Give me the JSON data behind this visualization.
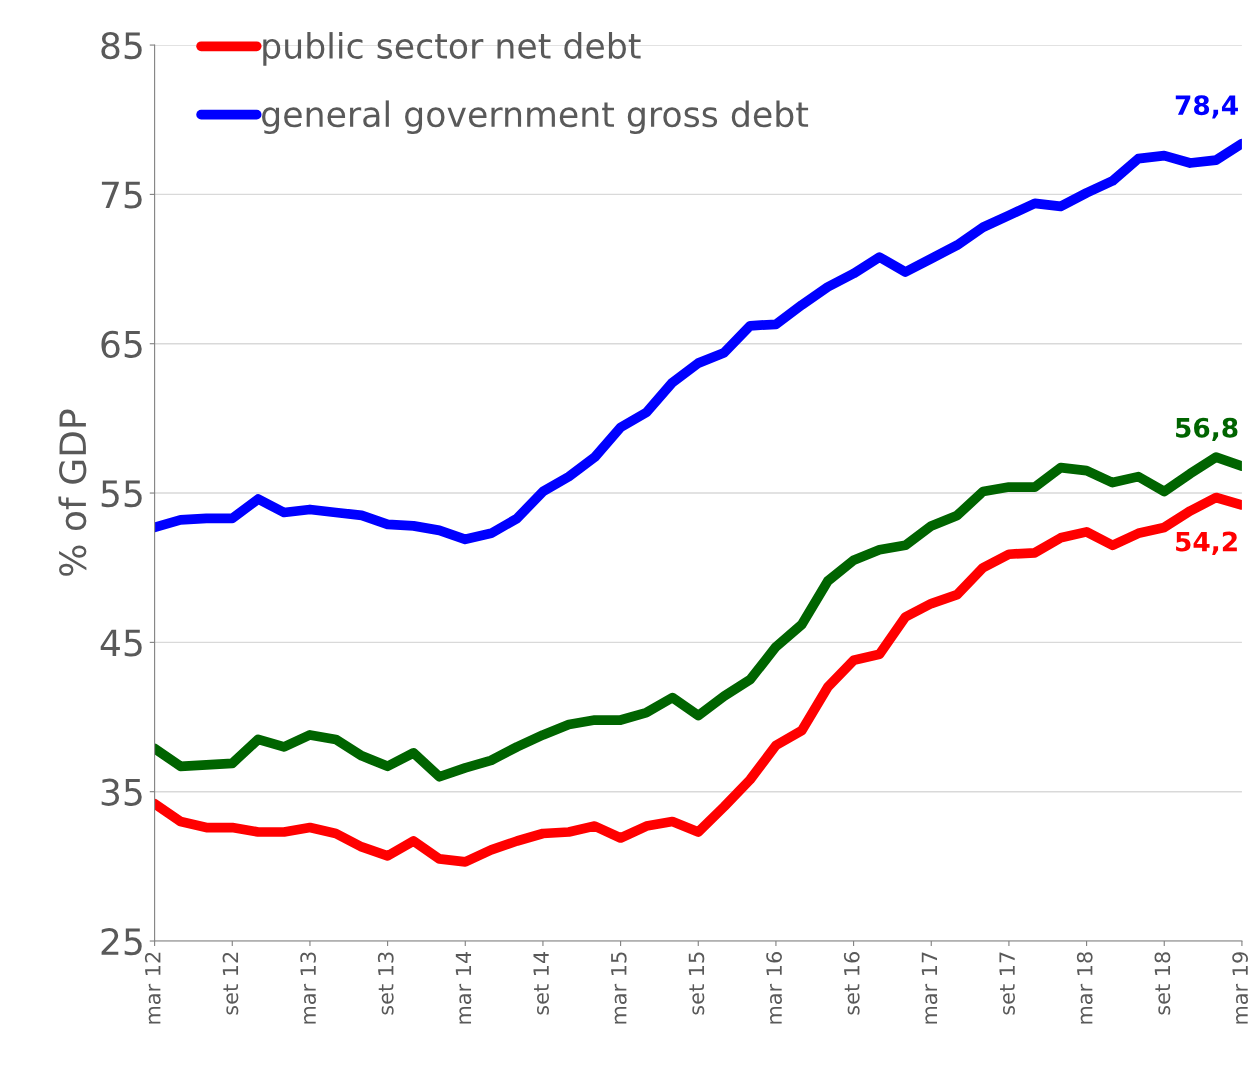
{
  "chart_data": {
    "type": "line",
    "ylabel": "% of GDP",
    "categories": [
      "mar 12",
      null,
      null,
      "set 12",
      null,
      null,
      "mar 13",
      null,
      null,
      "set 13",
      null,
      null,
      "mar 14",
      null,
      null,
      "set 14",
      null,
      null,
      "mar 15",
      null,
      null,
      "set 15",
      null,
      null,
      "mar 16",
      null,
      null,
      "set 16",
      null,
      null,
      "mar 17",
      null,
      null,
      "set 17",
      null,
      null,
      "mar 18",
      null,
      null,
      "set 18",
      null,
      null,
      "mar 19"
    ],
    "ylim": [
      25,
      85
    ],
    "yticks": [
      25,
      35,
      45,
      55,
      65,
      75,
      85
    ],
    "grid": "y",
    "legend": "top left",
    "marker": "none",
    "line_style": "solid",
    "series": [
      {
        "name": "public sector net debt",
        "color": "#ff0000",
        "values": [
          34.2,
          33.0,
          32.6,
          32.6,
          32.3,
          32.3,
          32.6,
          32.2,
          31.3,
          30.7,
          31.7,
          30.5,
          30.3,
          31.1,
          31.7,
          32.2,
          32.3,
          32.7,
          31.9,
          32.7,
          33.0,
          32.3,
          34.0,
          35.8,
          38.1,
          39.1,
          42.0,
          43.8,
          44.2,
          46.7,
          47.6,
          48.2,
          50.0,
          50.9,
          51.0,
          52.0,
          52.4,
          51.5,
          52.3,
          52.7,
          53.8,
          54.7,
          54.2
        ],
        "value_labels": [
          null,
          null,
          null,
          null,
          null,
          null,
          null,
          null,
          null,
          null,
          null,
          null,
          null,
          null,
          null,
          null,
          null,
          null,
          null,
          null,
          null,
          null,
          null,
          null,
          null,
          null,
          null,
          null,
          null,
          null,
          null,
          null,
          null,
          null,
          null,
          null,
          null,
          null,
          null,
          null,
          null,
          null,
          "54,2"
        ]
      },
      {
        "name": "general government gross debt",
        "color": "#0000ff",
        "values": [
          52.7,
          53.2,
          53.3,
          53.3,
          54.6,
          53.7,
          53.9,
          53.7,
          53.5,
          52.9,
          52.8,
          52.5,
          51.9,
          52.3,
          53.3,
          55.1,
          56.1,
          57.4,
          59.4,
          60.4,
          62.4,
          63.7,
          64.4,
          66.2,
          66.3,
          67.6,
          68.8,
          69.7,
          70.8,
          69.8,
          70.7,
          71.6,
          72.8,
          73.6,
          74.4,
          74.2,
          75.1,
          75.9,
          77.4,
          77.6,
          77.1,
          77.3,
          78.4
        ],
        "value_labels": [
          null,
          null,
          null,
          null,
          null,
          null,
          null,
          null,
          null,
          null,
          null,
          null,
          null,
          null,
          null,
          null,
          null,
          null,
          null,
          null,
          null,
          null,
          null,
          null,
          null,
          null,
          null,
          null,
          null,
          null,
          null,
          null,
          null,
          null,
          null,
          null,
          null,
          null,
          null,
          null,
          null,
          null,
          "78,4"
        ]
      },
      {
        "color": "#006400",
        "values": [
          37.9,
          36.7,
          36.8,
          36.9,
          38.5,
          38.0,
          38.8,
          38.5,
          37.4,
          36.7,
          37.6,
          36.0,
          36.6,
          37.1,
          38.0,
          38.8,
          39.5,
          39.8,
          39.8,
          40.3,
          41.3,
          40.1,
          41.4,
          42.5,
          44.7,
          46.2,
          49.1,
          50.5,
          51.2,
          51.5,
          52.8,
          53.5,
          55.1,
          55.4,
          55.4,
          56.7,
          56.5,
          55.7,
          56.1,
          55.1,
          56.3,
          57.4,
          56.8
        ],
        "value_labels": [
          null,
          null,
          null,
          null,
          null,
          null,
          null,
          null,
          null,
          null,
          null,
          null,
          null,
          null,
          null,
          null,
          null,
          null,
          null,
          null,
          null,
          null,
          null,
          null,
          null,
          null,
          null,
          null,
          null,
          null,
          null,
          null,
          null,
          null,
          null,
          null,
          null,
          null,
          null,
          null,
          null,
          null,
          "56,8"
        ]
      }
    ]
  }
}
